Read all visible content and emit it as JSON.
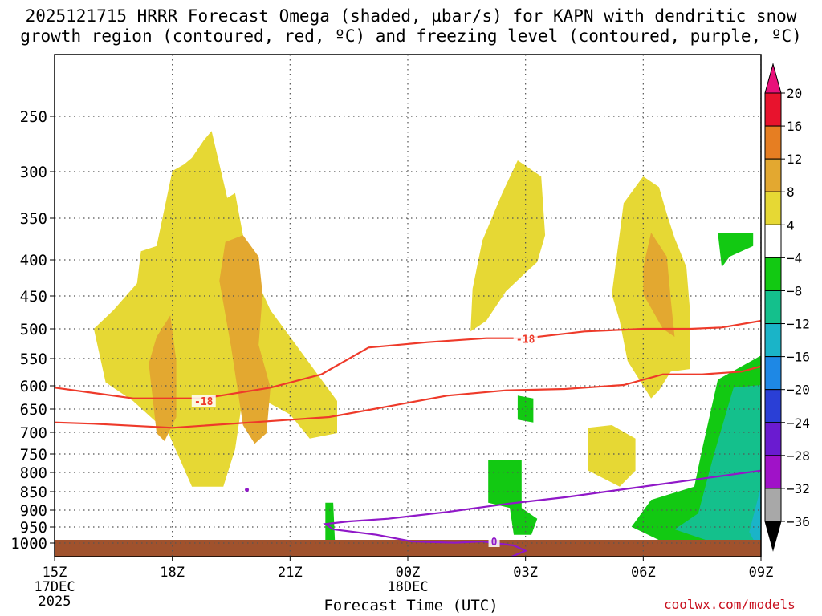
{
  "title": {
    "line1": "2025121715 HRRR Forecast Omega (shaded, µbar/s) for KAPN with dendritic snow",
    "line2": "growth region (contoured, red, ºC) and freezing level (contoured, purple, ºC)"
  },
  "credit": "coolwx.com/models",
  "chart_data": {
    "type": "heatmap",
    "xlabel": "Forecast Time (UTC)",
    "x_ticks": [
      {
        "label": "15Z",
        "hour": 0,
        "sub": [
          "17DEC",
          "2025"
        ]
      },
      {
        "label": "18Z",
        "hour": 3,
        "sub": []
      },
      {
        "label": "21Z",
        "hour": 6,
        "sub": []
      },
      {
        "label": "00Z",
        "hour": 9,
        "sub": [
          "18DEC"
        ]
      },
      {
        "label": "03Z",
        "hour": 12,
        "sub": []
      },
      {
        "label": "06Z",
        "hour": 15,
        "sub": []
      },
      {
        "label": "09Z",
        "hour": 18,
        "sub": []
      }
    ],
    "y_axis": {
      "scale": "pressure",
      "top": 200,
      "bottom": 1050,
      "reversed": true
    },
    "y_ticks": [
      250,
      300,
      350,
      400,
      450,
      500,
      550,
      600,
      650,
      700,
      750,
      800,
      850,
      900,
      950,
      1000
    ],
    "colorbar": {
      "labels": [
        "20",
        "16",
        "12",
        "8",
        "4",
        "-4",
        "-8",
        "-12",
        "-16",
        "-20",
        "-24",
        "-28",
        "-32",
        "-36"
      ],
      "bins": [
        {
          "color": "#e8132d",
          "min": 16,
          "max": 20
        },
        {
          "color": "#e67e22",
          "min": 12,
          "max": 16
        },
        {
          "color": "#e3a830",
          "min": 8,
          "max": 12
        },
        {
          "color": "#e6d834",
          "min": 4,
          "max": 8
        },
        {
          "color": "#ffffff",
          "min": -4,
          "max": 4
        },
        {
          "color": "#12c912",
          "min": -8,
          "max": -4
        },
        {
          "color": "#14c08c",
          "min": -12,
          "max": -8
        },
        {
          "color": "#1ab4c8",
          "min": -16,
          "max": -12
        },
        {
          "color": "#1e88e5",
          "min": -20,
          "max": -16
        },
        {
          "color": "#2a3fd6",
          "min": -24,
          "max": -20
        },
        {
          "color": "#6a1bd0",
          "min": -28,
          "max": -24
        },
        {
          "color": "#a012c8",
          "min": -32,
          "max": -28
        },
        {
          "color": "#a8a8a8",
          "min": -36,
          "max": -32
        }
      ],
      "over_color": "#e8117a",
      "under_color": "#000000"
    },
    "fill_colors": {
      "terrain": "#a0522d",
      "rising_weak": "#e6d834",
      "rising_moderate": "#e3a830",
      "sinking_weak": "#12c912",
      "sinking_moderate": "#14c08c",
      "sinking_strong": "#1ab4c8"
    },
    "omega_regions": [
      {
        "bin": "rising_weak",
        "points": [
          [
            1.0,
            1230
          ],
          [
            1.5,
            1160
          ],
          [
            2.1,
            1060
          ],
          [
            2.2,
            940
          ],
          [
            2.6,
            920
          ],
          [
            3.0,
            640
          ],
          [
            3.3,
            615
          ],
          [
            3.5,
            590
          ],
          [
            3.8,
            525
          ],
          [
            4.0,
            490
          ],
          [
            4.4,
            740
          ],
          [
            4.6,
            722
          ],
          [
            4.8,
            880
          ],
          [
            5.0,
            1000
          ],
          [
            5.5,
            1160
          ],
          [
            6.2,
            1300
          ],
          [
            7.2,
            1500
          ],
          [
            7.2,
            1620
          ],
          [
            6.5,
            1640
          ],
          [
            6.0,
            1550
          ],
          [
            5.0,
            1470
          ],
          [
            4.8,
            1480
          ],
          [
            4.6,
            1680
          ],
          [
            4.3,
            1820
          ],
          [
            3.5,
            1820
          ],
          [
            2.9,
            1620
          ],
          [
            2.0,
            1500
          ],
          [
            1.3,
            1430
          ],
          [
            1.0,
            1230
          ]
        ]
      },
      {
        "bin": "rising_moderate",
        "points": [
          [
            2.6,
            1620
          ],
          [
            2.4,
            1360
          ],
          [
            2.6,
            1260
          ],
          [
            2.95,
            1180
          ],
          [
            3.1,
            1350
          ],
          [
            3.1,
            1560
          ],
          [
            2.8,
            1650
          ],
          [
            2.6,
            1620
          ]
        ]
      },
      {
        "bin": "rising_moderate",
        "points": [
          [
            4.2,
            1050
          ],
          [
            4.35,
            905
          ],
          [
            4.8,
            880
          ],
          [
            5.2,
            960
          ],
          [
            5.3,
            1100
          ],
          [
            5.2,
            1290
          ],
          [
            5.5,
            1450
          ],
          [
            5.4,
            1620
          ],
          [
            5.1,
            1660
          ],
          [
            4.8,
            1590
          ],
          [
            4.5,
            1300
          ],
          [
            4.2,
            1050
          ]
        ]
      },
      {
        "bin": "rising_weak",
        "points": [
          [
            10.65,
            1080
          ],
          [
            10.9,
            900
          ],
          [
            11.4,
            725
          ],
          [
            11.8,
            600
          ],
          [
            12.4,
            660
          ],
          [
            12.5,
            880
          ],
          [
            12.3,
            980
          ],
          [
            12.0,
            1020
          ],
          [
            11.5,
            1090
          ],
          [
            11.0,
            1200
          ],
          [
            10.6,
            1240
          ],
          [
            10.65,
            1080
          ]
        ]
      },
      {
        "bin": "rising_weak",
        "points": [
          [
            14.5,
            760
          ],
          [
            15.0,
            660
          ],
          [
            15.4,
            700
          ],
          [
            15.6,
            800
          ],
          [
            15.8,
            890
          ],
          [
            16.1,
            1000
          ],
          [
            16.2,
            1180
          ],
          [
            16.2,
            1380
          ],
          [
            15.7,
            1390
          ],
          [
            15.4,
            1460
          ],
          [
            15.2,
            1490
          ],
          [
            14.6,
            1350
          ],
          [
            14.4,
            1200
          ],
          [
            14.2,
            1100
          ],
          [
            14.5,
            760
          ]
        ]
      },
      {
        "bin": "rising_moderate",
        "points": [
          [
            15.0,
            1000
          ],
          [
            15.2,
            870
          ],
          [
            15.6,
            960
          ],
          [
            15.7,
            1120
          ],
          [
            15.8,
            1260
          ],
          [
            15.5,
            1230
          ],
          [
            15.0,
            1100
          ],
          [
            15.0,
            1000
          ]
        ]
      },
      {
        "bin": "rising_weak",
        "points": [
          [
            13.6,
            1600
          ],
          [
            14.2,
            1590
          ],
          [
            14.8,
            1640
          ],
          [
            14.8,
            1760
          ],
          [
            14.4,
            1820
          ],
          [
            13.6,
            1760
          ],
          [
            13.6,
            1600
          ]
        ]
      },
      {
        "bin": "sinking_weak",
        "points": [
          [
            11.8,
            1480
          ],
          [
            12.2,
            1490
          ],
          [
            12.2,
            1580
          ],
          [
            11.8,
            1570
          ],
          [
            11.8,
            1480
          ]
        ]
      },
      {
        "bin": "sinking_weak",
        "points": [
          [
            11.05,
            1720
          ],
          [
            11.9,
            1720
          ],
          [
            11.9,
            1900
          ],
          [
            12.3,
            1940
          ],
          [
            12.15,
            2000
          ],
          [
            11.7,
            2000
          ],
          [
            11.6,
            1900
          ],
          [
            11.05,
            1880
          ],
          [
            11.05,
            1720
          ]
        ]
      },
      {
        "bin": "sinking_weak",
        "points": [
          [
            6.9,
            1880
          ],
          [
            7.1,
            1880
          ],
          [
            7.15,
            2050
          ],
          [
            6.9,
            2080
          ],
          [
            6.9,
            1880
          ]
        ]
      },
      {
        "bin": "sinking_weak",
        "points": [
          [
            16.9,
            870
          ],
          [
            17.8,
            870
          ],
          [
            17.8,
            920
          ],
          [
            17.2,
            960
          ],
          [
            17.0,
            1000
          ],
          [
            16.9,
            870
          ]
        ]
      },
      {
        "bin": "sinking_weak",
        "points": [
          [
            14.7,
            1970
          ],
          [
            15.2,
            1870
          ],
          [
            16.3,
            1820
          ],
          [
            16.5,
            1680
          ],
          [
            16.9,
            1420
          ],
          [
            18.0,
            1330
          ],
          [
            18.0,
            1080
          ],
          [
            18.8,
            1060
          ],
          [
            18.8,
            2100
          ],
          [
            18.3,
            2110
          ],
          [
            17.3,
            2100
          ],
          [
            16.4,
            2050
          ],
          [
            15.4,
            2020
          ],
          [
            14.7,
            1970
          ]
        ]
      },
      {
        "bin": "sinking_moderate",
        "points": [
          [
            15.8,
            1980
          ],
          [
            16.4,
            1920
          ],
          [
            16.8,
            1700
          ],
          [
            17.3,
            1450
          ],
          [
            18.0,
            1440
          ],
          [
            18.4,
            1350
          ],
          [
            18.8,
            1200
          ],
          [
            18.8,
            2080
          ],
          [
            17.8,
            2080
          ],
          [
            16.6,
            2020
          ],
          [
            15.8,
            1980
          ]
        ]
      },
      {
        "bin": "sinking_strong",
        "points": [
          [
            17.7,
            1990
          ],
          [
            18.1,
            1820
          ],
          [
            18.5,
            1600
          ],
          [
            18.8,
            1450
          ],
          [
            18.8,
            2070
          ],
          [
            18.0,
            2070
          ],
          [
            17.7,
            1990
          ]
        ]
      }
    ],
    "dendritic_contours": [
      {
        "label": "-18",
        "label_at": [
          3.8,
          1500
        ],
        "points": [
          [
            -0.6,
            1450
          ],
          [
            1.0,
            1470
          ],
          [
            2.0,
            1490
          ],
          [
            3.8,
            1490
          ],
          [
            5.5,
            1450
          ],
          [
            6.8,
            1400
          ],
          [
            8.0,
            1300
          ],
          [
            9.5,
            1280
          ],
          [
            11.0,
            1265
          ],
          [
            12.0,
            1265
          ],
          [
            13.5,
            1240
          ],
          [
            15.0,
            1230
          ],
          [
            16.2,
            1230
          ],
          [
            17.0,
            1225
          ],
          [
            18.8,
            1200
          ]
        ]
      },
      {
        "label": "-18",
        "label_at": [
          12.0,
          1268
        ],
        "points": [
          [
            -0.6,
            1580
          ],
          [
            1.0,
            1585
          ],
          [
            3.0,
            1600
          ],
          [
            5.0,
            1580
          ],
          [
            7.0,
            1560
          ],
          [
            8.5,
            1520
          ],
          [
            10.0,
            1480
          ],
          [
            11.5,
            1460
          ],
          [
            13.0,
            1455
          ],
          [
            14.5,
            1440
          ],
          [
            15.5,
            1400
          ],
          [
            16.5,
            1400
          ],
          [
            17.5,
            1390
          ],
          [
            18.8,
            1370
          ]
        ]
      }
    ],
    "freezing_contours": [
      {
        "label": "0",
        "label_at": [
          4.9,
          2130
        ],
        "points": [
          [
            -0.6,
            2110
          ],
          [
            1.0,
            2125
          ],
          [
            3.0,
            2135
          ],
          [
            4.9,
            2140
          ],
          [
            6.0,
            2135
          ],
          [
            8.0,
            2130
          ],
          [
            9.6,
            2120
          ],
          [
            10.6,
            2100
          ],
          [
            11.6,
            2085
          ],
          [
            12.0,
            2060
          ],
          [
            11.7,
            2040
          ],
          [
            10.9,
            2025
          ],
          [
            10.2,
            2030
          ],
          [
            9.1,
            2025
          ],
          [
            8.2,
            2000
          ],
          [
            7.1,
            1980
          ],
          [
            6.9,
            1960
          ],
          [
            7.5,
            1950
          ],
          [
            8.5,
            1940
          ],
          [
            10.0,
            1915
          ],
          [
            11.5,
            1885
          ],
          [
            13.0,
            1860
          ],
          [
            14.5,
            1830
          ],
          [
            16.5,
            1790
          ],
          [
            18.8,
            1760
          ]
        ]
      },
      {
        "label": "0",
        "label_at": [
          11.2,
          2025
        ],
        "points": []
      },
      {
        "label": "",
        "label_at": null,
        "points": [
          [
            10.6,
            2140
          ],
          [
            11.8,
            2140
          ],
          [
            13.0,
            2135
          ],
          [
            13.7,
            2135
          ],
          [
            14.2,
            2140
          ]
        ]
      }
    ]
  }
}
